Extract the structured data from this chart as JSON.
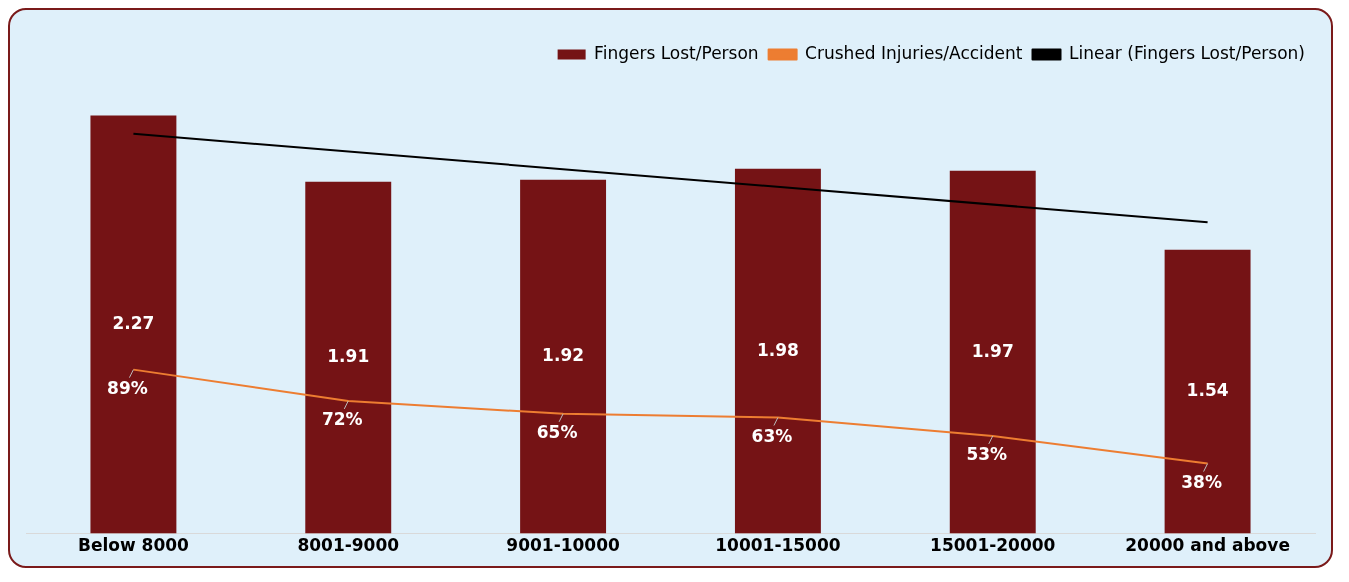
{
  "chart_data": {
    "type": "bar",
    "categories": [
      "Below 8000",
      "8001-9000",
      "9001-10000",
      "10001-15000",
      "15001-20000",
      "20000 and above"
    ],
    "series": [
      {
        "name": "Fingers Lost/Person",
        "color": "#751315",
        "values": [
          2.27,
          1.91,
          1.92,
          1.98,
          1.97,
          1.54
        ],
        "value_labels": [
          "2.27",
          "1.91",
          "1.92",
          "1.98",
          "1.97",
          "1.54"
        ]
      },
      {
        "name": "Crushed Injuries/Accident",
        "type": "line",
        "axis": "y2",
        "color": "#ed7d31",
        "values": [
          89,
          72,
          65,
          63,
          53,
          38
        ],
        "value_labels": [
          "89%",
          "72%",
          "65%",
          "63%",
          "53%",
          "38%"
        ]
      },
      {
        "name": "Linear (Fingers Lost/Person)",
        "type": "line",
        "color": "#000000",
        "x": [
          "Below 8000",
          "20000 and above"
        ],
        "values": [
          2.17,
          1.69
        ]
      }
    ],
    "tick_labels": "x",
    "grid": false,
    "legend": "top right",
    "marker": "none"
  }
}
